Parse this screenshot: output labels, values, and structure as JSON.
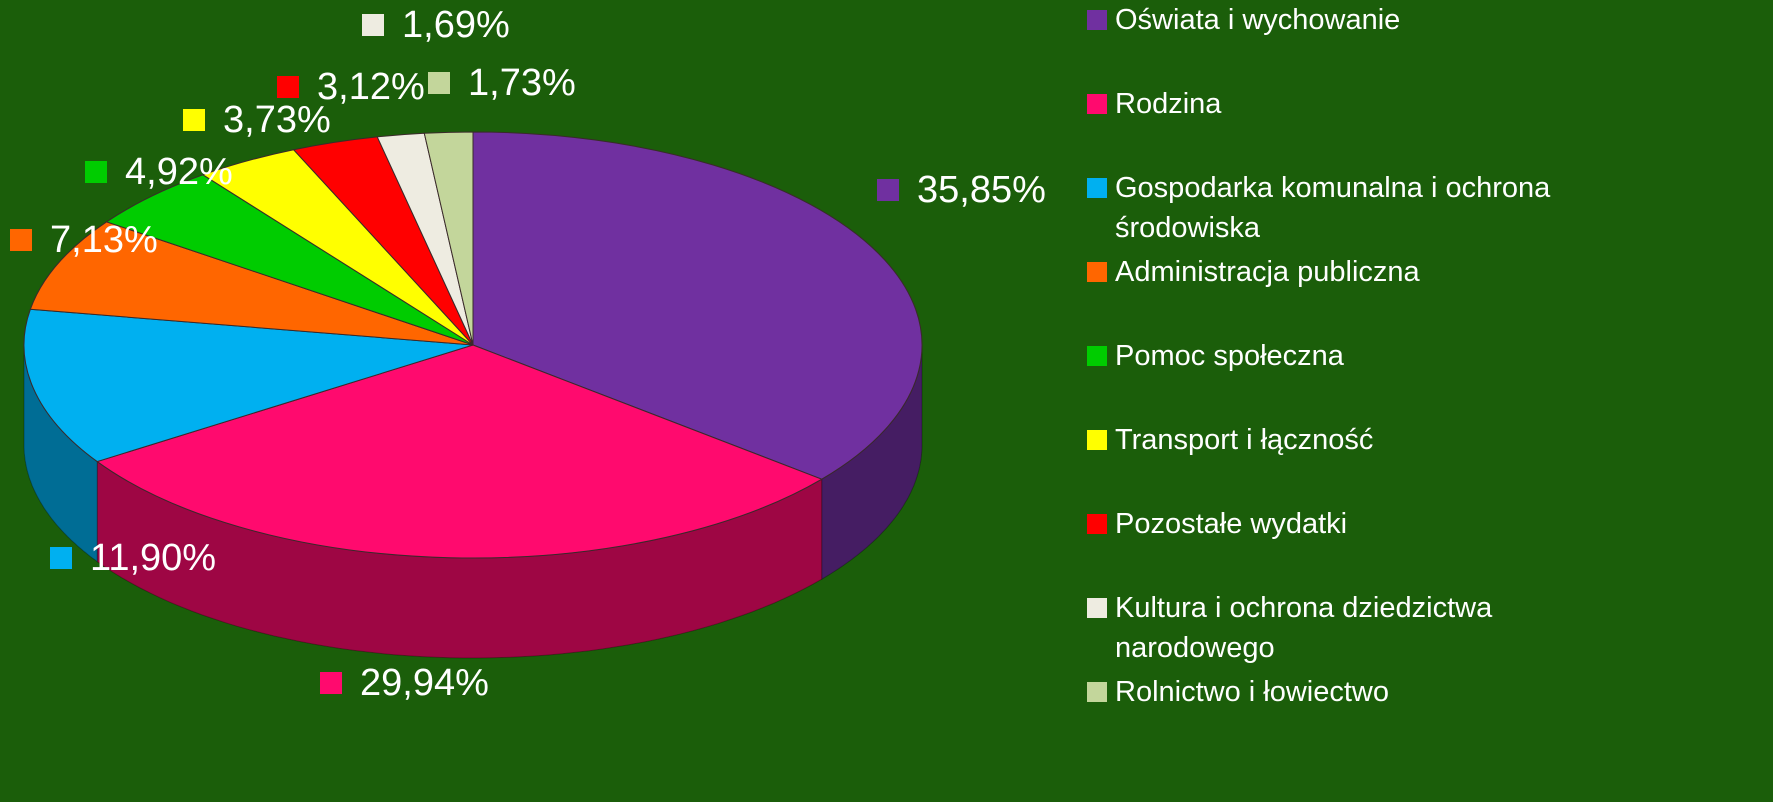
{
  "chart_data": {
    "type": "pie3d",
    "categories": [
      "Oświata i wychowanie",
      "Rodzina",
      "Gospodarka komunalna i ochrona środowiska",
      "Administracja publiczna",
      "Pomoc społeczna",
      "Transport i łączność",
      "Pozostałe wydatki",
      "Kultura i ochrona dziedzictwa narodowego",
      "Rolnictwo i łowiectwo"
    ],
    "values": [
      35.85,
      29.94,
      11.9,
      7.13,
      4.92,
      3.73,
      3.12,
      1.69,
      1.73
    ],
    "value_labels": [
      "35,85%",
      "29,94%",
      "11,90%",
      "7,13%",
      "4,92%",
      "3,73%",
      "3,12%",
      "1,69%",
      "1,73%"
    ],
    "colors": [
      "#7030a0",
      "#ff0a6e",
      "#00b0f0",
      "#ff6600",
      "#00cc00",
      "#ffff00",
      "#ff0000",
      "#eeece1",
      "#c3d69b"
    ],
    "legend": "right"
  }
}
